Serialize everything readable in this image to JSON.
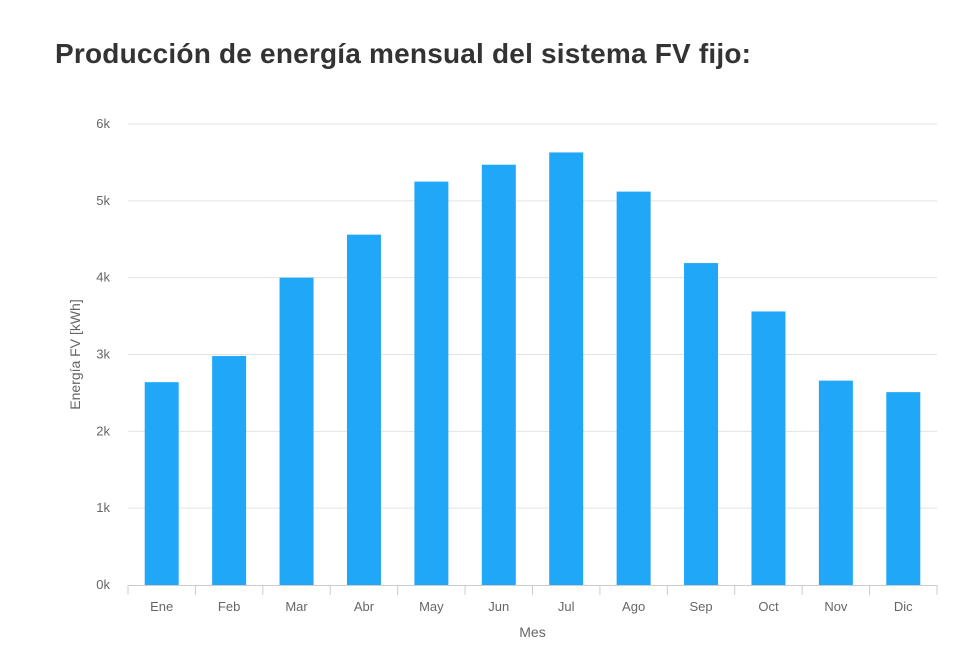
{
  "chart_data": {
    "type": "bar",
    "title": "Producción de energía mensual del sistema FV fijo:",
    "xlabel": "Mes",
    "ylabel": "Energía FV [kWh]",
    "categories": [
      "Ene",
      "Feb",
      "Mar",
      "Abr",
      "May",
      "Jun",
      "Jul",
      "Ago",
      "Sep",
      "Oct",
      "Nov",
      "Dic"
    ],
    "values": [
      2640,
      2980,
      4000,
      4560,
      5250,
      5470,
      5630,
      5120,
      4190,
      3560,
      2660,
      2510
    ],
    "ylim": [
      0,
      6000
    ],
    "yticks": [
      0,
      1000,
      2000,
      3000,
      4000,
      5000,
      6000
    ],
    "ytick_labels": [
      "0k",
      "1k",
      "2k",
      "3k",
      "4k",
      "5k",
      "6k"
    ],
    "grid": true,
    "legend": "none",
    "colors": {
      "bar": "#21a7f7",
      "grid": "#e3e3e3",
      "axis": "#cccccc",
      "text": "#666666",
      "title": "#333333"
    }
  }
}
